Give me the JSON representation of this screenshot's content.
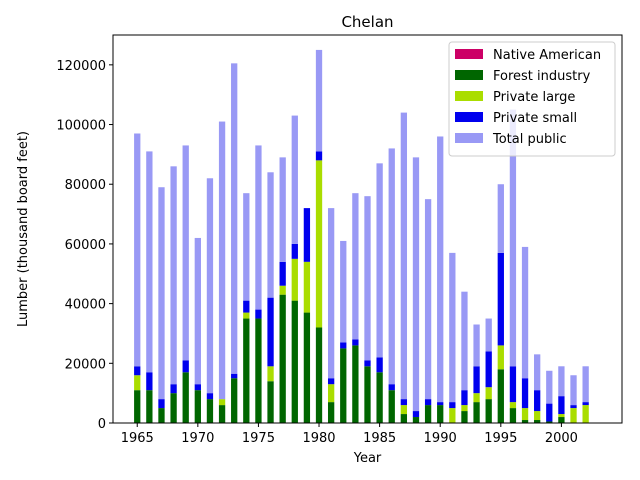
{
  "chart_data": {
    "type": "bar",
    "stacked": true,
    "title": "Chelan",
    "xlabel": "Year",
    "ylabel": "Lumber (thousand board feet)",
    "ylim": [
      0,
      130000
    ],
    "xlim": [
      1963,
      2005
    ],
    "x_ticks": [
      1965,
      1970,
      1975,
      1980,
      1985,
      1990,
      1995,
      2000
    ],
    "x_tick_labels": [
      "1965",
      "1970",
      "1975",
      "1980",
      "1985",
      "1990",
      "1995",
      "2000"
    ],
    "y_ticks": [
      0,
      20000,
      40000,
      60000,
      80000,
      100000,
      120000
    ],
    "y_tick_labels": [
      "0",
      "20000",
      "40000",
      "60000",
      "80000",
      "100000",
      "120000"
    ],
    "legend_position": "top-right",
    "x": [
      1965,
      1966,
      1967,
      1968,
      1969,
      1970,
      1971,
      1972,
      1973,
      1974,
      1975,
      1976,
      1977,
      1978,
      1979,
      1980,
      1981,
      1982,
      1983,
      1984,
      1985,
      1986,
      1987,
      1988,
      1989,
      1990,
      1991,
      1992,
      1993,
      1994,
      1995,
      1996,
      1997,
      1998,
      1999,
      2000,
      2001,
      2002
    ],
    "series": [
      {
        "name": "Native American",
        "color": "#cc0066",
        "values": [
          0,
          0,
          0,
          0,
          0,
          0,
          0,
          0,
          0,
          0,
          0,
          0,
          0,
          0,
          0,
          0,
          0,
          0,
          0,
          0,
          0,
          0,
          0,
          0,
          0,
          0,
          0,
          0,
          0,
          0,
          0,
          0,
          0,
          0,
          0,
          0,
          0,
          0
        ]
      },
      {
        "name": "Forest industry",
        "color": "#006600",
        "values": [
          11000,
          11000,
          5000,
          10000,
          17000,
          11000,
          8000,
          6000,
          15000,
          35000,
          35000,
          14000,
          43000,
          41000,
          37000,
          32000,
          7000,
          25000,
          26000,
          19000,
          17000,
          11000,
          3000,
          2000,
          6000,
          6000,
          0,
          4000,
          7000,
          8000,
          18000,
          5000,
          1000,
          1000,
          500,
          2000,
          0,
          0
        ]
      },
      {
        "name": "Private large",
        "color": "#aadd00",
        "values": [
          5000,
          0,
          0,
          0,
          0,
          0,
          0,
          2000,
          0,
          2000,
          0,
          5000,
          3000,
          14000,
          17000,
          56000,
          6000,
          0,
          0,
          0,
          0,
          0,
          3000,
          0,
          0,
          0,
          5000,
          2000,
          3000,
          4000,
          8000,
          2000,
          4000,
          3000,
          0,
          1000,
          5000,
          6000
        ]
      },
      {
        "name": "Private small",
        "color": "#0000ee",
        "values": [
          3000,
          6000,
          3000,
          3000,
          4000,
          2000,
          2000,
          0,
          1500,
          4000,
          3000,
          23000,
          8000,
          5000,
          18000,
          3000,
          2000,
          2000,
          2000,
          2000,
          5000,
          2000,
          2000,
          2000,
          2000,
          1000,
          2000,
          5000,
          9000,
          12000,
          31000,
          12000,
          10000,
          7000,
          6000,
          6000,
          1000,
          1000
        ]
      },
      {
        "name": "Total public",
        "color": "#9999f5",
        "values": [
          78000,
          74000,
          71000,
          73000,
          72000,
          49000,
          72000,
          93000,
          104000,
          36000,
          55000,
          42000,
          35000,
          43000,
          0,
          34000,
          57000,
          34000,
          49000,
          55000,
          65000,
          79000,
          96000,
          85000,
          67000,
          89000,
          50000,
          33000,
          14000,
          11000,
          23000,
          86000,
          44000,
          12000,
          11000,
          10000,
          10000,
          12000
        ]
      }
    ]
  }
}
